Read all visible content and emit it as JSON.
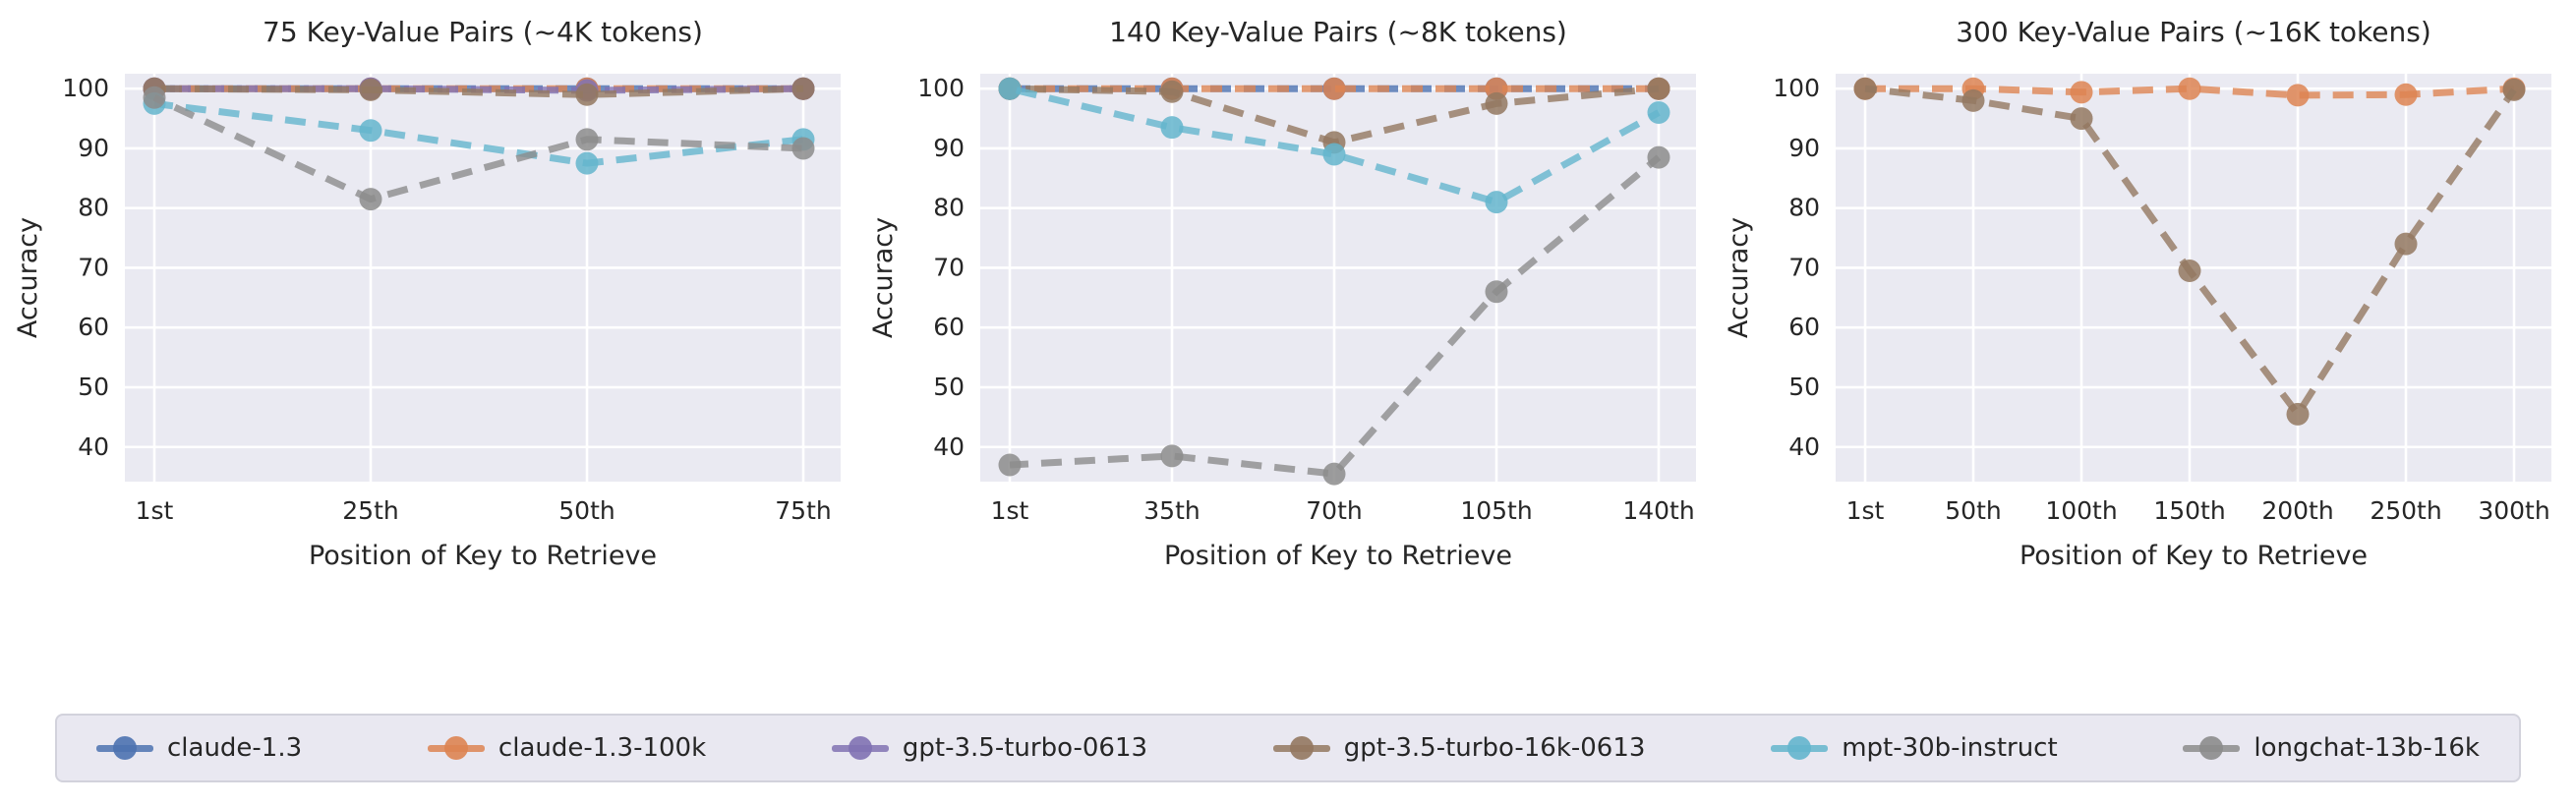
{
  "figure": {
    "ylabel": "Accuracy",
    "xlabel": "Position of Key to Retrieve",
    "colors": {
      "figure_background": "#ffffff",
      "plot_background": "#eaeaf2",
      "gridline": "#ffffff",
      "text": "#262626",
      "legend_background": "#e9e8f1",
      "legend_border": "#d2d2dc"
    }
  },
  "legend": {
    "items": [
      {
        "label": "claude-1.3",
        "color": "#4C72B0"
      },
      {
        "label": "claude-1.3-100k",
        "color": "#DD8452"
      },
      {
        "label": "gpt-3.5-turbo-0613",
        "color": "#8172B3"
      },
      {
        "label": "gpt-3.5-turbo-16k-0613",
        "color": "#937860"
      },
      {
        "label": "mpt-30b-instruct",
        "color": "#64B5CD"
      },
      {
        "label": "longchat-13b-16k",
        "color": "#8C8C8C"
      }
    ]
  },
  "chart_data": [
    {
      "type": "line",
      "title": "75 Key-Value Pairs (~4K tokens)",
      "xlabel": "Position of Key to Retrieve",
      "ylabel": "Accuracy",
      "categories": [
        "1st",
        "25th",
        "50th",
        "75th"
      ],
      "y_ticks": [
        100,
        90,
        80,
        70,
        60,
        50,
        40
      ],
      "ylim": [
        34.2,
        102.5
      ],
      "grid": true,
      "line_style": "dashed",
      "series": [
        {
          "name": "claude-1.3",
          "color": "#4C72B0",
          "values": [
            100,
            100,
            100,
            100
          ]
        },
        {
          "name": "claude-1.3-100k",
          "color": "#DD8452",
          "values": [
            100,
            100,
            100,
            100
          ]
        },
        {
          "name": "gpt-3.5-turbo-0613",
          "color": "#8172B3",
          "values": [
            100,
            100,
            99.7,
            100
          ]
        },
        {
          "name": "gpt-3.5-turbo-16k-0613",
          "color": "#937860",
          "values": [
            100,
            99.8,
            99,
            100
          ]
        },
        {
          "name": "mpt-30b-instruct",
          "color": "#64B5CD",
          "values": [
            97.5,
            93,
            87.5,
            91.5
          ]
        },
        {
          "name": "longchat-13b-16k",
          "color": "#8C8C8C",
          "values": [
            98.5,
            81.5,
            91.5,
            90
          ]
        }
      ]
    },
    {
      "type": "line",
      "title": "140 Key-Value Pairs (~8K tokens)",
      "xlabel": "Position of Key to Retrieve",
      "ylabel": "Accuracy",
      "categories": [
        "1st",
        "35th",
        "70th",
        "105th",
        "140th"
      ],
      "y_ticks": [
        100,
        90,
        80,
        70,
        60,
        50,
        40
      ],
      "ylim": [
        34.2,
        102.5
      ],
      "grid": true,
      "line_style": "dashed",
      "series": [
        {
          "name": "claude-1.3",
          "color": "#4C72B0",
          "values": [
            100,
            100,
            100,
            100,
            100
          ]
        },
        {
          "name": "claude-1.3-100k",
          "color": "#DD8452",
          "values": [
            100,
            100,
            100,
            100,
            100
          ]
        },
        {
          "name": "gpt-3.5-turbo-16k-0613",
          "color": "#937860",
          "values": [
            100,
            99.5,
            91,
            97.5,
            100
          ]
        },
        {
          "name": "mpt-30b-instruct",
          "color": "#64B5CD",
          "values": [
            100,
            93.5,
            89,
            81,
            96
          ]
        },
        {
          "name": "longchat-13b-16k",
          "color": "#8C8C8C",
          "values": [
            37,
            38.5,
            35.5,
            66,
            88.5
          ]
        }
      ]
    },
    {
      "type": "line",
      "title": "300 Key-Value Pairs (~16K tokens)",
      "xlabel": "Position of Key to Retrieve",
      "ylabel": "Accuracy",
      "categories": [
        "1st",
        "50th",
        "100th",
        "150th",
        "200th",
        "250th",
        "300th"
      ],
      "y_ticks": [
        100,
        90,
        80,
        70,
        60,
        50,
        40
      ],
      "ylim": [
        34.2,
        102.5
      ],
      "grid": true,
      "line_style": "dashed",
      "series": [
        {
          "name": "claude-1.3-100k",
          "color": "#DD8452",
          "values": [
            100,
            100,
            99.4,
            100,
            98.9,
            99,
            100
          ]
        },
        {
          "name": "gpt-3.5-turbo-16k-0613",
          "color": "#937860",
          "values": [
            100,
            98,
            95,
            69.5,
            45.5,
            74,
            99.8
          ]
        }
      ]
    }
  ]
}
